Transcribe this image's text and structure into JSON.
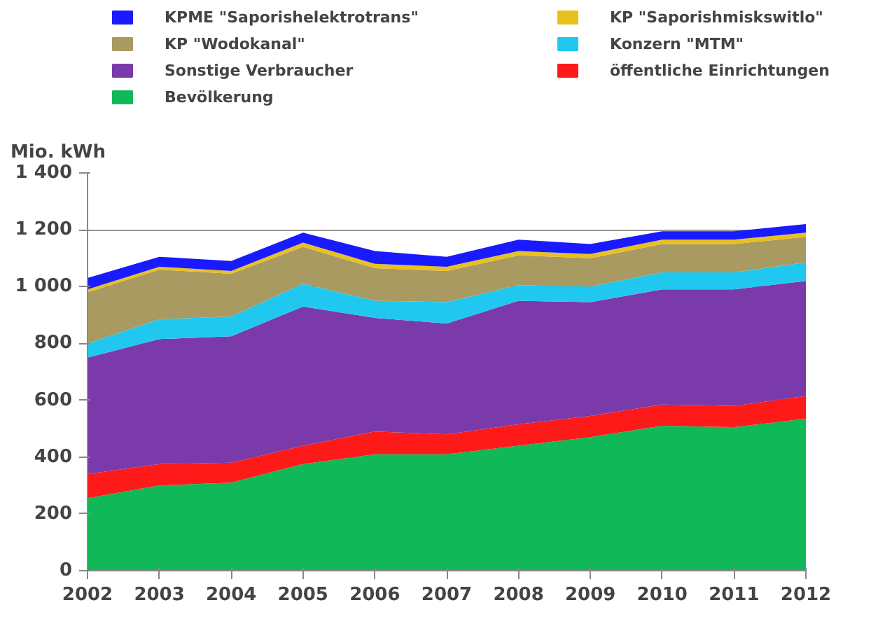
{
  "chart_data": {
    "type": "area",
    "stacked": true,
    "ylabel": "Mio. kWh",
    "x": [
      2002,
      2003,
      2004,
      2005,
      2006,
      2007,
      2008,
      2009,
      2010,
      2011,
      2012
    ],
    "xlim": [
      2002,
      2012
    ],
    "xticks": [
      2002,
      2003,
      2004,
      2005,
      2006,
      2007,
      2008,
      2009,
      2010,
      2011,
      2012
    ],
    "ylim": [
      0,
      1400
    ],
    "yticks": [
      0,
      {
        "value": 200,
        "label": "200"
      },
      {
        "value": 400,
        "label": "400"
      },
      {
        "value": 600,
        "label": "600"
      },
      {
        "value": 800,
        "label": "800"
      },
      {
        "value": 1000,
        "label": "1 000"
      },
      {
        "value": 1200,
        "label": "1 200"
      },
      {
        "value": 1400,
        "label": "1 400"
      }
    ],
    "grid": "y",
    "legend": "top",
    "series": [
      {
        "name": "Bevölkerung",
        "color": "#10b858",
        "values": [
          255,
          300,
          310,
          375,
          410,
          410,
          440,
          470,
          510,
          505,
          535
        ]
      },
      {
        "name": "öffentliche Einrichtungen",
        "color": "#ff1a1a",
        "values": [
          85,
          75,
          70,
          65,
          80,
          70,
          75,
          75,
          75,
          75,
          80
        ]
      },
      {
        "name": "Sonstige Verbraucher",
        "color": "#7a3aaa",
        "values": [
          410,
          440,
          445,
          490,
          400,
          390,
          435,
          400,
          405,
          410,
          405
        ]
      },
      {
        "name": "Konzern \"MTM\"",
        "color": "#20c8f0",
        "values": [
          50,
          70,
          70,
          80,
          60,
          75,
          55,
          55,
          60,
          60,
          65
        ]
      },
      {
        "name": "KP \"Wodokanal\"",
        "color": "#a89a60",
        "values": [
          180,
          175,
          150,
          130,
          115,
          110,
          105,
          100,
          100,
          100,
          90
        ]
      },
      {
        "name": "KP \"Saporishmiskswitlo\"",
        "color": "#e8c020",
        "values": [
          10,
          10,
          10,
          15,
          15,
          15,
          15,
          15,
          15,
          15,
          15
        ]
      },
      {
        "name": "KPME \"Saporishelektrotrans\"",
        "color": "#1a1aff",
        "values": [
          40,
          35,
          35,
          35,
          45,
          35,
          40,
          35,
          30,
          30,
          30
        ]
      }
    ]
  }
}
